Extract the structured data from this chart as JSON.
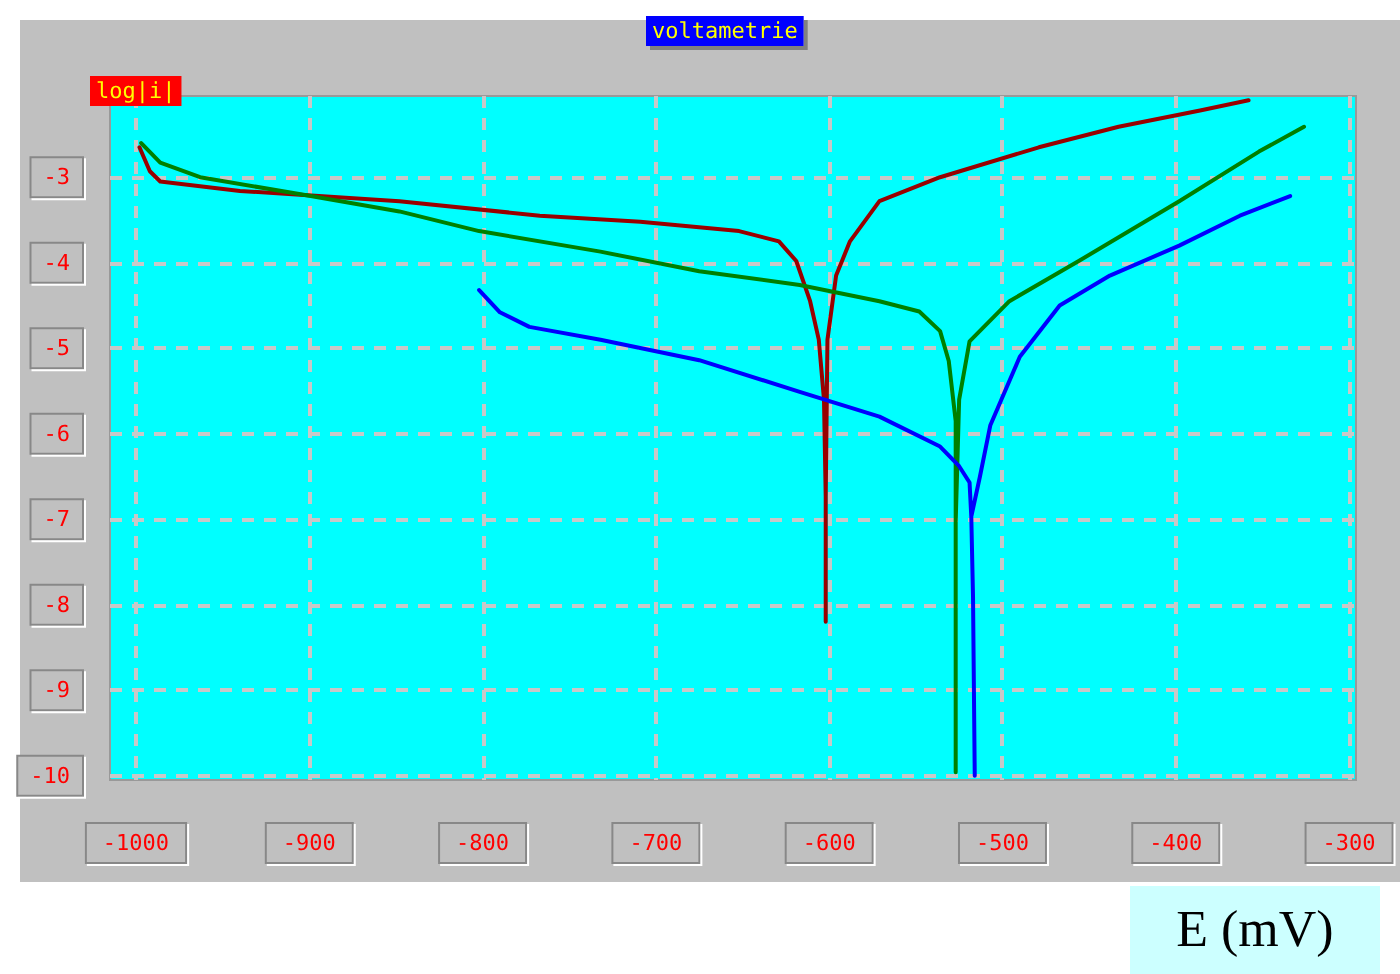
{
  "chart_data": {
    "type": "line",
    "title": "voltametrie",
    "ylabel": "log|i|",
    "xlabel": "E (mV)",
    "xlim": [
      -1015,
      -296
    ],
    "ylim": [
      -10.05,
      -2.05
    ],
    "xticks": [
      -1000,
      -900,
      -800,
      -700,
      -600,
      -500,
      -400,
      -300
    ],
    "yticks": [
      -3,
      -4,
      -5,
      -6,
      -7,
      -8,
      -9,
      -10
    ],
    "grid": true,
    "marker": "none",
    "line_style": "solid",
    "series": [
      {
        "color": "#990000",
        "x": [
          -998,
          -992,
          -986,
          -940,
          -848,
          -767,
          -709,
          -652,
          -629,
          -619,
          -611,
          -606,
          -603,
          -602,
          -602,
          -602,
          -601,
          -596,
          -588,
          -571,
          -536,
          -479,
          -433,
          -386,
          -358
        ],
        "values": [
          -2.65,
          -2.93,
          -3.05,
          -3.16,
          -3.28,
          -3.45,
          -3.52,
          -3.63,
          -3.75,
          -3.98,
          -4.45,
          -4.9,
          -5.6,
          -6.73,
          -8.2,
          -6.73,
          -4.9,
          -4.15,
          -3.75,
          -3.28,
          -3.0,
          -2.65,
          -2.41,
          -2.22,
          -2.1
        ]
      },
      {
        "color": "#008000",
        "x": [
          -997,
          -986,
          -963,
          -905,
          -848,
          -802,
          -732,
          -675,
          -617,
          -571,
          -548,
          -536,
          -531,
          -527,
          -527,
          -527,
          -527,
          -525,
          -519,
          -496,
          -456,
          -398,
          -352,
          -326
        ],
        "values": [
          -2.6,
          -2.83,
          -3.0,
          -3.2,
          -3.4,
          -3.63,
          -3.87,
          -4.1,
          -4.26,
          -4.45,
          -4.57,
          -4.8,
          -5.15,
          -5.85,
          -7.03,
          -9.96,
          -7.03,
          -5.6,
          -4.92,
          -4.45,
          -3.98,
          -3.28,
          -2.7,
          -2.41
        ]
      },
      {
        "color": "#0000ff",
        "x": [
          -802,
          -790,
          -773,
          -732,
          -675,
          -617,
          -571,
          -536,
          -525,
          -519,
          -518,
          -517,
          -516,
          -517,
          -518,
          -513,
          -507,
          -490,
          -467,
          -438,
          -398,
          -363,
          -334
        ],
        "values": [
          -4.32,
          -4.58,
          -4.75,
          -4.9,
          -5.14,
          -5.51,
          -5.8,
          -6.15,
          -6.38,
          -6.57,
          -6.97,
          -7.9,
          -10.0,
          -7.9,
          -6.97,
          -6.5,
          -5.9,
          -5.1,
          -4.5,
          -4.15,
          -3.8,
          -3.45,
          -3.22
        ]
      }
    ]
  }
}
